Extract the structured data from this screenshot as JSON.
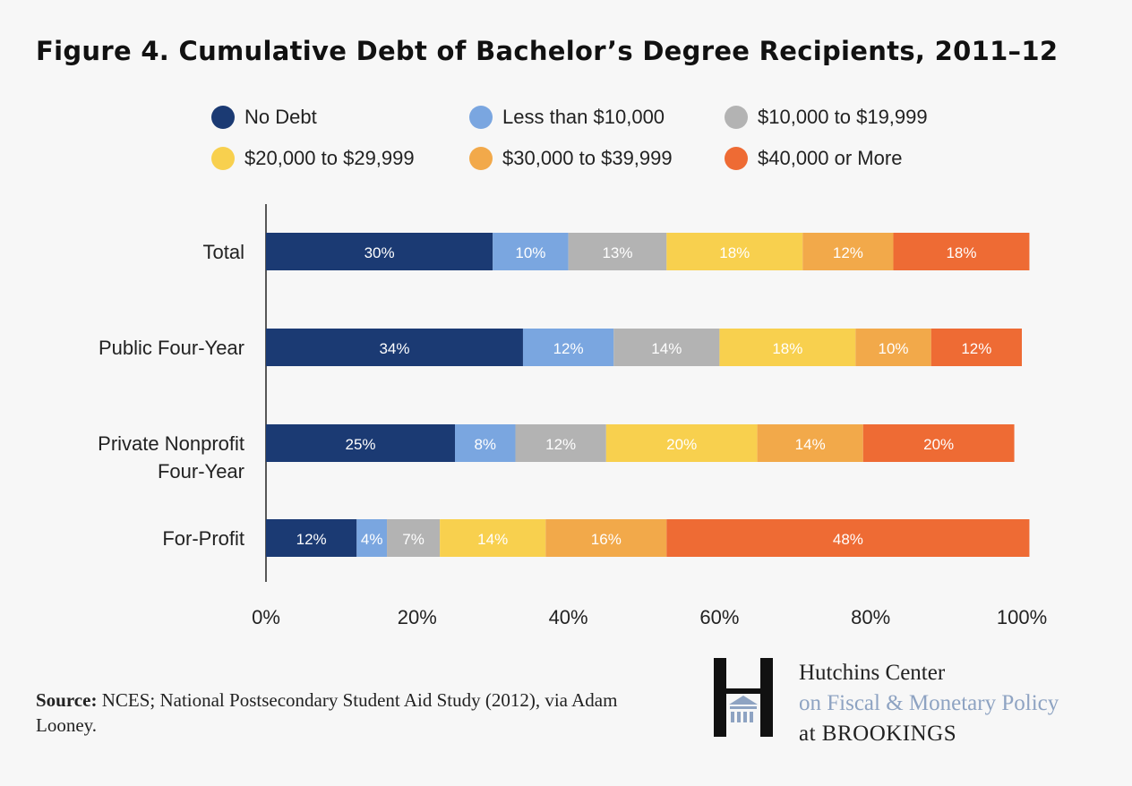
{
  "title": "Figure 4. Cumulative Debt of Bachelor’s Degree Recipients, 2011–12",
  "legend": [
    {
      "label": "No Debt",
      "color": "#1b3a73"
    },
    {
      "label": "Less than $10,000",
      "color": "#7aa6e0"
    },
    {
      "label": "$10,000 to $19,999",
      "color": "#b3b3b3"
    },
    {
      "label": "$20,000 to $29,999",
      "color": "#f8d04e"
    },
    {
      "label": "$30,000 to $39,999",
      "color": "#f2a94a"
    },
    {
      "label": "$40,000 or More",
      "color": "#ee6b34"
    }
  ],
  "chart_data": {
    "type": "bar",
    "orientation": "horizontal",
    "stacked": true,
    "categories": [
      "Total",
      "Public Four-Year",
      "Private Nonprofit\nFour-Year",
      "For-Profit"
    ],
    "series": [
      {
        "name": "No Debt",
        "values": [
          30,
          34,
          25,
          12
        ]
      },
      {
        "name": "Less than $10,000",
        "values": [
          10,
          12,
          8,
          4
        ]
      },
      {
        "name": "$10,000 to $19,999",
        "values": [
          13,
          14,
          12,
          7
        ]
      },
      {
        "name": "$20,000 to $29,999",
        "values": [
          18,
          18,
          20,
          14
        ]
      },
      {
        "name": "$30,000 to $39,999",
        "values": [
          12,
          10,
          14,
          16
        ]
      },
      {
        "name": "$40,000 or More",
        "values": [
          18,
          12,
          20,
          48
        ]
      }
    ],
    "xlim": [
      0,
      100
    ],
    "xticks": [
      "0%",
      "20%",
      "40%",
      "60%",
      "80%",
      "100%"
    ],
    "value_suffix": "%",
    "grid": true,
    "legend_position": "top"
  },
  "source": {
    "label": "Source:",
    "text": "NCES; National Postsecondary Student Aid Study (2012), via Adam Looney."
  },
  "logo": {
    "line1": "Hutchins Center",
    "line2": "on Fiscal & Monetary Policy",
    "line3": "at BROOKINGS"
  }
}
